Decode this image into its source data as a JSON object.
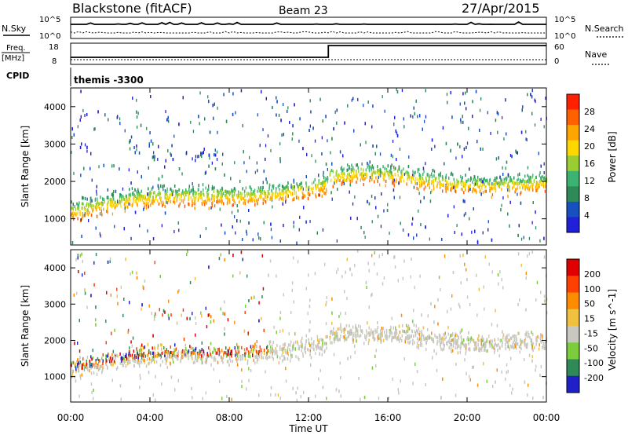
{
  "header": {
    "station": "Blackstone (fitACF)",
    "beam": "Beam 23",
    "date": "27/Apr/2015"
  },
  "summary_panels": {
    "nsky_label": "N.Sky",
    "nsearch_label": "N.Search",
    "nsky_ticks": [
      "10^5",
      "10^0"
    ],
    "nsearch_ticks": [
      "10^5",
      "10^0"
    ],
    "freq_label_top": "Freq.",
    "freq_label_bottom": "[MHz]",
    "freq_ticks": [
      "18",
      "8"
    ],
    "nave_label": "Nave",
    "nave_ticks": [
      "60",
      "0"
    ],
    "cpid_label": "CPID",
    "cpid_value": "themis -3300"
  },
  "chart_data": [
    {
      "type": "heatmap",
      "name": "power",
      "ylabel": "Slant Range [km]",
      "ylim": [
        300,
        4500
      ],
      "yticks": [
        "4000",
        "3000",
        "2000",
        "1000"
      ],
      "colorbar_label": "Power [dB]",
      "colorbar_ticks": [
        "28",
        "24",
        "20",
        "16",
        "12",
        "8",
        "4"
      ],
      "colors": [
        "#2020d8",
        "#1850c0",
        "#2e8b57",
        "#3cb371",
        "#9acd32",
        "#ffd700",
        "#ffa500",
        "#ff6000",
        "#ff2000"
      ]
    },
    {
      "type": "heatmap",
      "name": "velocity",
      "ylabel": "Slant Range [km]",
      "ylim": [
        300,
        4500
      ],
      "yticks": [
        "4000",
        "3000",
        "2000",
        "1000"
      ],
      "colorbar_label": "Velocity [m s^-1]",
      "colorbar_ticks": [
        "200",
        "100",
        "50",
        "15",
        "-15",
        "-50",
        "-100",
        "-200"
      ],
      "colors": [
        "#2020c8",
        "#2e8b57",
        "#7ccd3c",
        "#c8c8c0",
        "#f0c040",
        "#ff8c00",
        "#ff4000",
        "#e00000"
      ]
    }
  ],
  "time_axis": {
    "label": "Time UT",
    "ticks": [
      "00:00",
      "04:00",
      "08:00",
      "12:00",
      "16:00",
      "20:00",
      "00:00"
    ]
  }
}
